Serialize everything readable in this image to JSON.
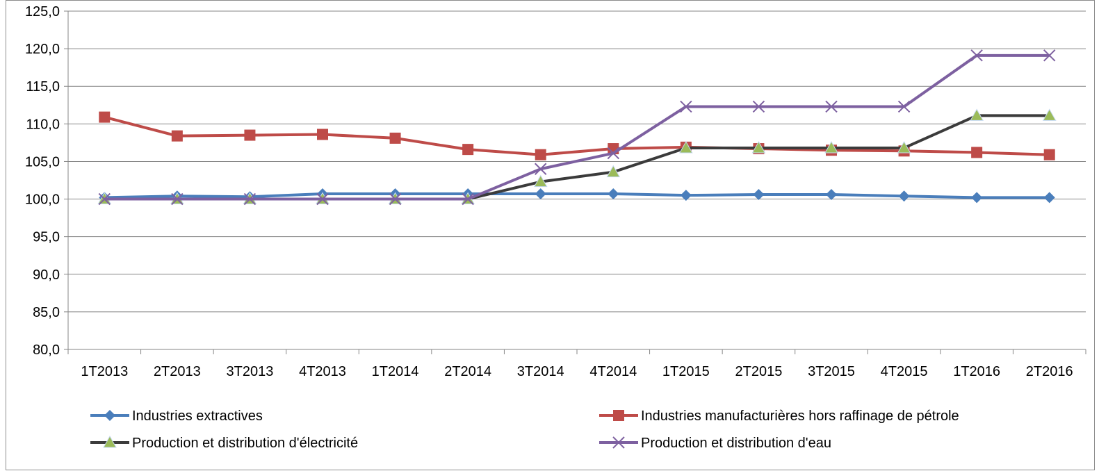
{
  "chart_data": {
    "type": "line",
    "title": "",
    "xlabel": "",
    "ylabel": "",
    "ylim": [
      80,
      125
    ],
    "ytick_step": 5,
    "ytick_labels": [
      "80,0",
      "85,0",
      "90,0",
      "95,0",
      "100,0",
      "105,0",
      "110,0",
      "115,0",
      "120,0",
      "125,0"
    ],
    "grid": "horizontal",
    "legend_position": "bottom",
    "categories": [
      "1T2013",
      "2T2013",
      "3T2013",
      "4T2013",
      "1T2014",
      "2T2014",
      "3T2014",
      "4T2014",
      "1T2015",
      "2T2015",
      "3T2015",
      "4T2015",
      "1T2016",
      "2T2016"
    ],
    "series": [
      {
        "name": "Industries extractives",
        "color": "#4a7ebb",
        "marker": "diamond",
        "values": [
          100.2,
          100.4,
          100.3,
          100.7,
          100.7,
          100.7,
          100.7,
          100.7,
          100.5,
          100.6,
          100.6,
          100.4,
          100.2,
          100.2
        ]
      },
      {
        "name": "Industries manufacturières hors raffinage de pétrole",
        "color": "#be4b48",
        "marker": "square",
        "values": [
          110.9,
          108.4,
          108.5,
          108.6,
          108.1,
          106.6,
          105.9,
          106.7,
          106.9,
          106.7,
          106.5,
          106.4,
          106.2,
          105.9
        ]
      },
      {
        "name": "Production et distribution d'électricité",
        "color": "#3b3b3b",
        "marker": "triangle",
        "marker_color": "#9bbb59",
        "values": [
          100.0,
          100.0,
          100.0,
          100.0,
          100.0,
          100.0,
          102.3,
          103.6,
          106.8,
          106.8,
          106.8,
          106.8,
          111.1,
          111.1
        ]
      },
      {
        "name": "Production et distribution d'eau",
        "color": "#7d60a0",
        "marker": "x",
        "values": [
          100.0,
          100.0,
          100.0,
          100.0,
          100.0,
          100.0,
          104.0,
          106.1,
          112.3,
          112.3,
          112.3,
          112.3,
          119.1,
          119.1
        ]
      }
    ]
  }
}
